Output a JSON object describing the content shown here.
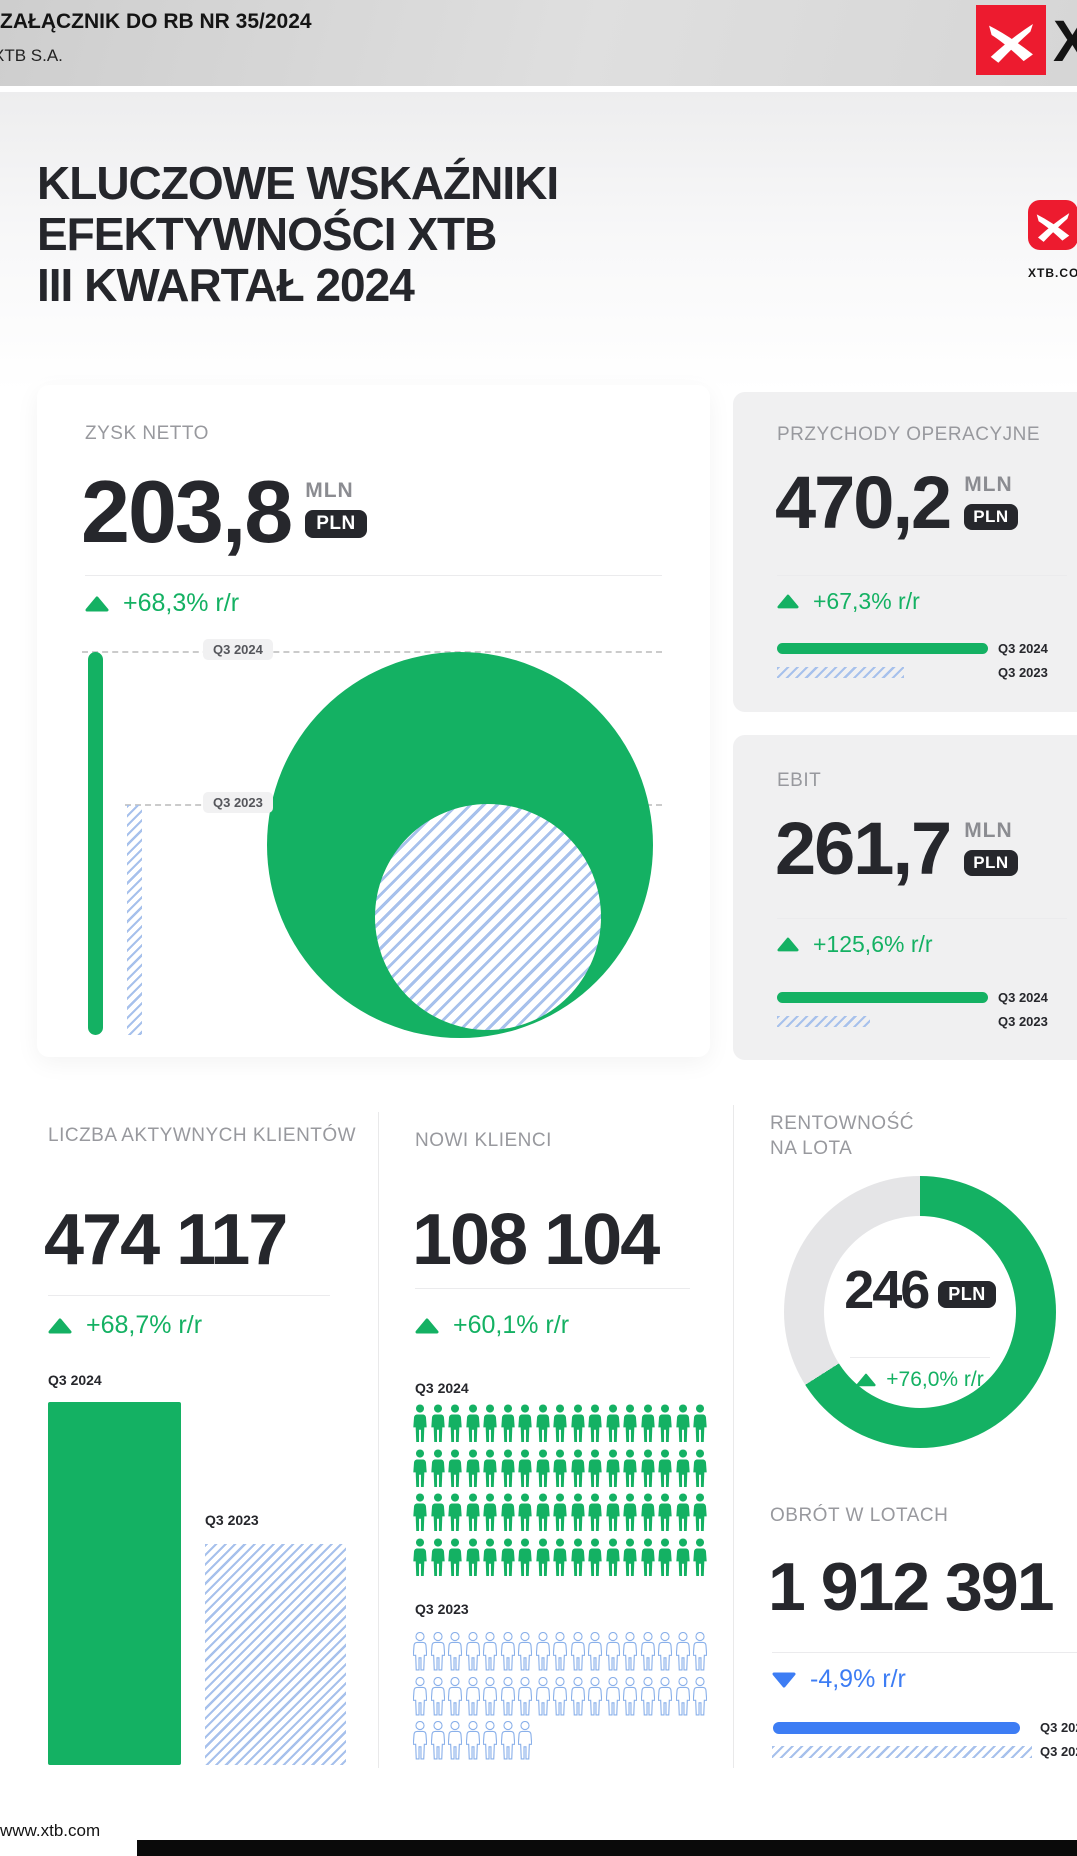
{
  "header": {
    "doc_title": "ZAŁĄCZNIK DO RB NR 35/2024",
    "company": "XTB S.A.",
    "wordmark_partial": "X"
  },
  "branding": {
    "site_caption": "XTB.COM"
  },
  "title": {
    "line1": "KLUCZOWE WSKAŹNIKI",
    "line2": "EFEKTYWNOŚCI XTB",
    "line3": "III KWARTAŁ 2024"
  },
  "periods": {
    "current": "Q3 2024",
    "previous": "Q3 2023"
  },
  "units": {
    "mln": "MLN",
    "pln": "PLN"
  },
  "panels": {
    "zysk_netto": {
      "label": "ZYSK NETTO",
      "value": "203,8",
      "change": "+68,3% r/r"
    },
    "przychody": {
      "label": "PRZYCHODY OPERACYJNE",
      "value": "470,2",
      "change": "+67,3% r/r"
    },
    "ebit": {
      "label": "EBIT",
      "value": "261,7",
      "change": "+125,6% r/r"
    },
    "aktywni": {
      "label": "LICZBA AKTYWNYCH KLIENTÓW",
      "value": "474 117",
      "change": "+68,7% r/r"
    },
    "nowi": {
      "label": "NOWI KLIENCI",
      "value": "108 104",
      "change": "+60,1% r/r"
    },
    "rentownosc": {
      "label_line1": "RENTOWNOŚĆ",
      "label_line2": "NA LOTA",
      "value": "246",
      "change": "+76,0% r/r"
    },
    "obrot": {
      "label": "OBRÓT W LOTACH",
      "value": "1 912 391",
      "change": "-4,9% r/r"
    }
  },
  "footer": {
    "url": "www.xtb.com"
  },
  "colors": {
    "green": "#14b163",
    "blue": "#3d7df4",
    "stripe_blue": "#a7c1ec",
    "red": "#ed1b2f",
    "dark_text": "#26272c",
    "label_gray": "#98999e",
    "card_gray": "#f0f0f1",
    "donut_track": "#e5e5e7"
  },
  "chart_data": [
    {
      "id": "zysk_netto",
      "type": "bar",
      "title": "ZYSK NETTO",
      "unit": "MLN PLN",
      "categories": [
        "Q3 2024",
        "Q3 2023"
      ],
      "value_current": 203.8,
      "change_yoy_pct": 68.3,
      "relative": [
        1,
        0.6
      ],
      "bubble_relative": [
        1,
        0.585
      ]
    },
    {
      "id": "przychody",
      "type": "bar",
      "title": "PRZYCHODY OPERACYJNE",
      "unit": "MLN PLN",
      "categories": [
        "Q3 2024",
        "Q3 2023"
      ],
      "value_current": 470.2,
      "change_yoy_pct": 67.3,
      "relative": [
        1,
        0.6
      ]
    },
    {
      "id": "ebit",
      "type": "bar",
      "title": "EBIT",
      "unit": "MLN PLN",
      "categories": [
        "Q3 2024",
        "Q3 2023"
      ],
      "value_current": 261.7,
      "change_yoy_pct": 125.6,
      "relative": [
        1,
        0.44
      ]
    },
    {
      "id": "aktywni",
      "type": "bar",
      "title": "LICZBA AKTYWNYCH KLIENTÓW",
      "categories": [
        "Q3 2024",
        "Q3 2023"
      ],
      "value_current": 474117,
      "change_yoy_pct": 68.7,
      "relative": [
        1,
        0.61
      ]
    },
    {
      "id": "nowi",
      "type": "pictogram",
      "title": "NOWI KLIENCI",
      "categories": [
        "Q3 2024",
        "Q3 2023"
      ],
      "value_current": 108104,
      "change_yoy_pct": 60.1,
      "rows_current": [
        17,
        17,
        17,
        17
      ],
      "rows_previous": [
        17,
        17,
        7
      ]
    },
    {
      "id": "rentownosc",
      "type": "donut",
      "title": "RENTOWNOŚĆ NA LOTA",
      "unit": "PLN",
      "value_current": 246,
      "change_yoy_pct": 76.0,
      "fraction": 0.66,
      "color": "#14b163",
      "track_color": "#e5e5e7"
    },
    {
      "id": "obrot",
      "type": "bar",
      "title": "OBRÓT W LOTACH",
      "categories": [
        "Q3 2024",
        "Q3 2023"
      ],
      "value_current": 1912391,
      "change_yoy_pct": -4.9,
      "relative": [
        0.95,
        1
      ]
    }
  ]
}
